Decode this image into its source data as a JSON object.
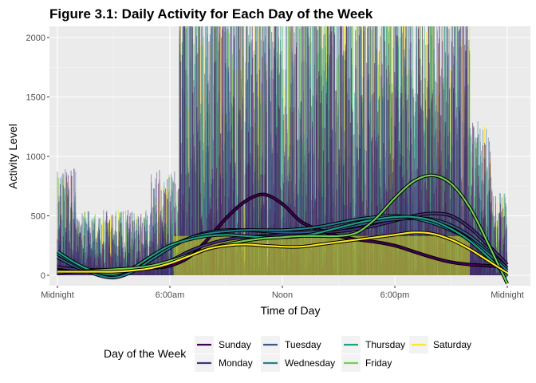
{
  "chart_data": {
    "type": "line",
    "title": "Figure 3.1: Daily Activity for Each Day of the Week",
    "xlabel": "Time of Day",
    "ylabel": "Activity Level",
    "x_ticks": [
      "Midnight",
      "6:00am",
      "Noon",
      "6:00pm",
      "Midnight"
    ],
    "x_tick_hours": [
      0,
      6,
      12,
      18,
      24
    ],
    "xlim": [
      0,
      24
    ],
    "ylim": [
      0,
      2000
    ],
    "y_ticks": [
      0,
      500,
      1000,
      1500,
      2000
    ],
    "grid": true,
    "legend_title": "Day of the Week",
    "legend_position": "bottom",
    "series": [
      {
        "name": "Sunday",
        "color": "#440154",
        "smooth_x": [
          0,
          1,
          2,
          3,
          4,
          5,
          6,
          7,
          8,
          9,
          10,
          11,
          12,
          13,
          14,
          15,
          16,
          17,
          18,
          19,
          20,
          21,
          22,
          23,
          24
        ],
        "smooth_y": [
          60,
          50,
          45,
          45,
          50,
          60,
          80,
          150,
          300,
          480,
          620,
          680,
          600,
          450,
          380,
          330,
          300,
          280,
          250,
          200,
          150,
          110,
          90,
          80,
          70
        ]
      },
      {
        "name": "Monday",
        "color": "#46337e",
        "smooth_x": [
          0,
          1,
          2,
          3,
          4,
          5,
          6,
          7,
          8,
          9,
          10,
          11,
          12,
          13,
          14,
          15,
          16,
          17,
          18,
          19,
          20,
          21,
          22,
          23,
          24
        ],
        "smooth_y": [
          70,
          50,
          40,
          40,
          50,
          70,
          120,
          200,
          260,
          300,
          320,
          330,
          340,
          350,
          360,
          370,
          390,
          420,
          460,
          500,
          520,
          500,
          400,
          250,
          90
        ]
      },
      {
        "name": "Tuesday",
        "color": "#365c8d",
        "smooth_x": [
          0,
          1,
          2,
          3,
          4,
          5,
          6,
          7,
          8,
          9,
          10,
          11,
          12,
          13,
          14,
          15,
          16,
          17,
          18,
          19,
          20,
          21,
          22,
          23,
          24
        ],
        "smooth_y": [
          150,
          70,
          20,
          10,
          60,
          150,
          240,
          310,
          360,
          380,
          380,
          370,
          360,
          360,
          370,
          390,
          420,
          450,
          470,
          480,
          470,
          420,
          330,
          200,
          60
        ]
      },
      {
        "name": "Wednesday",
        "color": "#277f8e",
        "smooth_x": [
          0,
          1,
          2,
          3,
          4,
          5,
          6,
          7,
          8,
          9,
          10,
          11,
          12,
          13,
          14,
          15,
          16,
          17,
          18,
          19,
          20,
          21,
          22,
          23,
          24
        ],
        "smooth_y": [
          180,
          90,
          10,
          -20,
          30,
          130,
          230,
          310,
          350,
          370,
          380,
          380,
          380,
          390,
          410,
          440,
          470,
          490,
          500,
          480,
          440,
          380,
          300,
          180,
          40
        ]
      },
      {
        "name": "Thursday",
        "color": "#1fa187",
        "smooth_x": [
          0,
          1,
          2,
          3,
          4,
          5,
          6,
          7,
          8,
          9,
          10,
          11,
          12,
          13,
          14,
          15,
          16,
          17,
          18,
          19,
          20,
          21,
          22,
          23,
          24
        ],
        "smooth_y": [
          200,
          100,
          30,
          10,
          60,
          160,
          250,
          300,
          330,
          340,
          330,
          320,
          320,
          330,
          360,
          400,
          440,
          470,
          490,
          490,
          460,
          390,
          290,
          150,
          -10
        ]
      },
      {
        "name": "Friday",
        "color": "#73d056",
        "smooth_x": [
          0,
          1,
          2,
          3,
          4,
          5,
          6,
          7,
          8,
          9,
          10,
          11,
          12,
          13,
          14,
          15,
          16,
          17,
          18,
          19,
          20,
          21,
          22,
          23,
          24
        ],
        "smooth_y": [
          20,
          30,
          40,
          50,
          60,
          80,
          120,
          170,
          220,
          260,
          290,
          310,
          320,
          330,
          330,
          330,
          360,
          480,
          650,
          790,
          840,
          770,
          570,
          260,
          -70
        ]
      },
      {
        "name": "Saturday",
        "color": "#fde725",
        "smooth_x": [
          0,
          1,
          2,
          3,
          4,
          5,
          6,
          7,
          8,
          9,
          10,
          11,
          12,
          13,
          14,
          15,
          16,
          17,
          18,
          19,
          20,
          21,
          22,
          23,
          24
        ],
        "smooth_y": [
          30,
          30,
          30,
          30,
          40,
          60,
          100,
          160,
          220,
          250,
          260,
          250,
          240,
          240,
          260,
          280,
          300,
          320,
          340,
          360,
          350,
          300,
          220,
          120,
          20
        ]
      }
    ]
  }
}
